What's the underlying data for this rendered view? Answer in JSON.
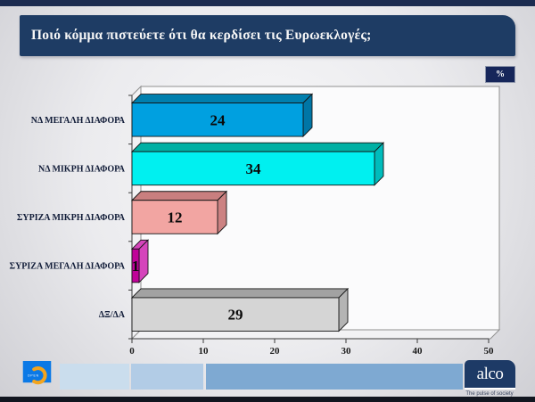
{
  "slide": {
    "title": "Ποιό κόμμα πιστεύετε ότι θα κερδίσει τις Ευρωεκλογές;",
    "unit_badge": "%"
  },
  "chart_data": {
    "type": "bar",
    "orientation": "horizontal",
    "style": "3d",
    "title": "Ποιό κόμμα πιστεύετε ότι θα κερδίσει τις Ευρωεκλογές;",
    "unit": "%",
    "categories": [
      "ΝΔ ΜΕΓΑΛΗ ΔΙΑΦΟΡΑ",
      "ΝΔ ΜΙΚΡΗ ΔΙΑΦΟΡΑ",
      "ΣΥΡΙΖΑ ΜΙΚΡΗ ΔΙΑΦΟΡΑ",
      "ΣΥΡΙΖΑ ΜΕΓΑΛΗ ΔΙΑΦΟΡΑ",
      "ΔΞ/ΔΑ"
    ],
    "values": [
      24,
      34,
      12,
      1,
      29
    ],
    "value_labels": [
      "24",
      "34",
      "12",
      "1",
      "29"
    ],
    "xlim": [
      0,
      50
    ],
    "x_ticks": [
      "0",
      "10",
      "20",
      "30",
      "40",
      "50"
    ],
    "grid": false,
    "legend": false,
    "bar_colors": [
      {
        "front": "#00a0e0",
        "top": "#007fae",
        "side": "#0076a6"
      },
      {
        "front": "#00f0f0",
        "top": "#00b0a4",
        "side": "#00bcbc"
      },
      {
        "front": "#f2a5a2",
        "top": "#c97f7f",
        "side": "#cc8282"
      },
      {
        "front": "#c00399",
        "top": "#d544bb",
        "side": "#d544bb"
      },
      {
        "front": "#d5d5d5",
        "top": "#a2a2a2",
        "side": "#b4b4b4"
      }
    ]
  },
  "footer": {
    "channel_logo_text": "OPEN",
    "agency_logo_text": "alco",
    "agency_tagline": "The pulse of society"
  },
  "colors": {
    "title_bg": "#1e3c64",
    "top_strip": "#1c2c50",
    "badge_bg": "#16265a",
    "open_logo_bg": "#0b79e6",
    "open_crescent": "#f3a41d",
    "alco_bg": "#1d3a66",
    "label_text": "#111c38"
  }
}
